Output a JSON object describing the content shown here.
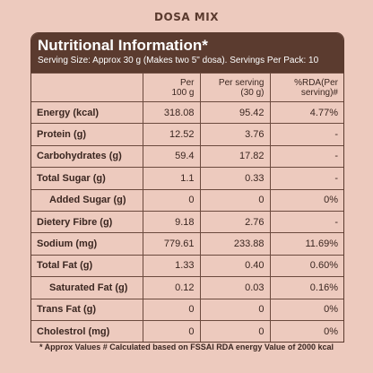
{
  "title": "DOSA MIX",
  "panel": {
    "heading": "Nutritional Information*",
    "serving": "Serving Size: Approx 30 g (Makes two 5\" dosa). Servings Per Pack: 10"
  },
  "table": {
    "header": [
      [
        "Per",
        "100 g"
      ],
      [
        "Per serving",
        "(30 g)"
      ],
      [
        "%RDA(Per",
        "serving)#"
      ]
    ],
    "rows": [
      [
        "Energy (kcal)",
        "318.08",
        "95.42",
        "4.77%"
      ],
      [
        "Protein (g)",
        "12.52",
        "3.76",
        "-"
      ],
      [
        "Carbohydrates (g)",
        "59.4",
        "17.82",
        "-"
      ],
      [
        "Total Sugar (g)",
        "1.1",
        "0.33",
        "-"
      ],
      [
        "Added Sugar (g)",
        "0",
        "0",
        "0%"
      ],
      [
        "Dietery Fibre (g)",
        "9.18",
        "2.76",
        "-"
      ],
      [
        "Sodium (mg)",
        "779.61",
        "233.88",
        "11.69%"
      ],
      [
        "Total Fat (g)",
        "1.33",
        "0.40",
        "0.60%"
      ],
      [
        "Saturated Fat (g)",
        "0.12",
        "0.03",
        "0.16%"
      ],
      [
        "Trans Fat (g)",
        "0",
        "0",
        "0%"
      ],
      [
        "Cholestrol (mg)",
        "0",
        "0",
        "0%"
      ]
    ]
  },
  "footnote": "* Approx Values # Calculated based on FSSAI RDA energy Value of 2000 kcal"
}
